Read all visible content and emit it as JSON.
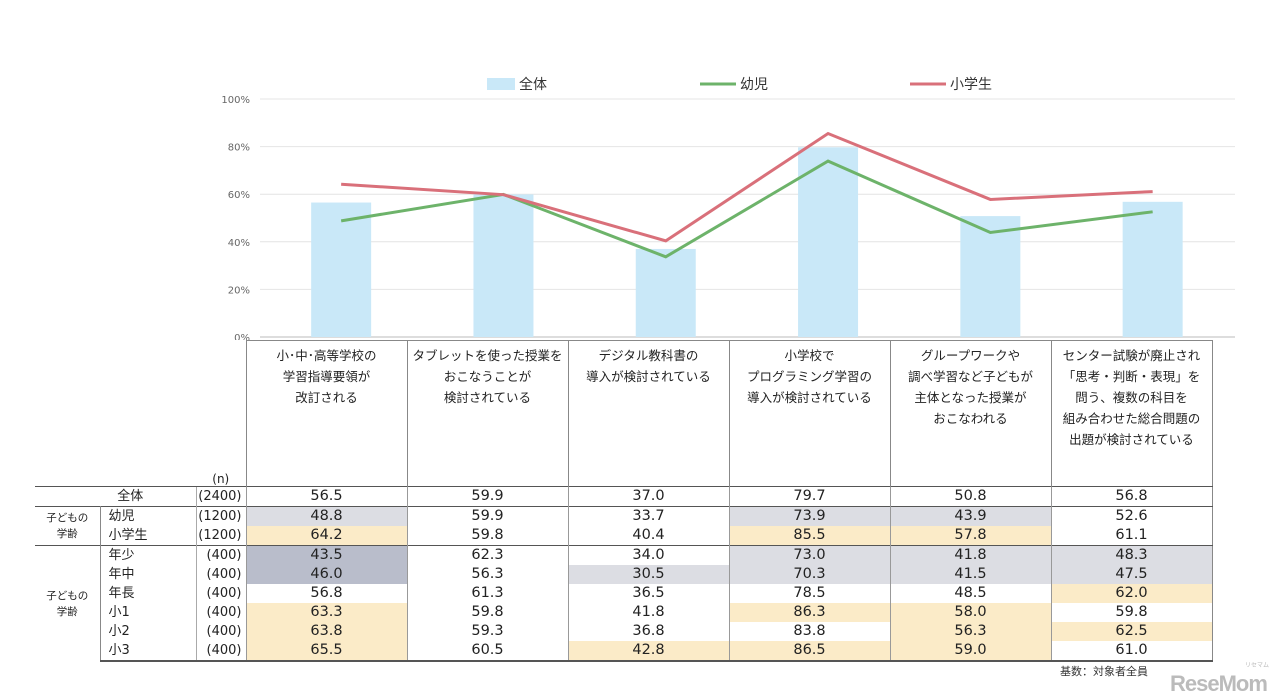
{
  "chart_data": {
    "type": "bar+line",
    "categories": [
      "小･中･高等学校の\n学習指導要領が\n改訂される",
      "タブレットを使った授業を\nおこなうことが\n検討されている",
      "デジタル教科書の\n導入が検討されている",
      "小学校で\nプログラミング学習の\n導入が検討されている",
      "グループワークや\n調べ学習など子どもが\n主体となった授業が\nおこなわれる",
      "センター試験が廃止され\n「思考・判断・表現」を\n問う、複数の科目を\n組み合わせた総合問題の\n出題が検討されている"
    ],
    "series": [
      {
        "name": "全体",
        "kind": "bar",
        "color": "#c9e8f8",
        "values": [
          56.5,
          59.9,
          37.0,
          79.7,
          50.8,
          56.8
        ]
      },
      {
        "name": "幼児",
        "kind": "line",
        "color": "#6db36a",
        "values": [
          48.8,
          59.9,
          33.7,
          73.9,
          43.9,
          52.6
        ]
      },
      {
        "name": "小学生",
        "kind": "line",
        "color": "#d9707a",
        "values": [
          64.2,
          59.8,
          40.4,
          85.5,
          57.8,
          61.1
        ]
      }
    ],
    "yticks": [
      "0%",
      "20%",
      "40%",
      "60%",
      "80%",
      "100%"
    ],
    "ylim": [
      0,
      100
    ],
    "grid": true,
    "legend": "top"
  },
  "table": {
    "n_header": "(n)",
    "shade_colors": {
      "l": "#dcdde3",
      "d": "#b9bdcb",
      "y": "#fbebc8",
      "w": "#ffffff"
    },
    "rows": [
      {
        "group": "",
        "label": "全体",
        "n": "(2400)",
        "values": [
          "56.5",
          "59.9",
          "37.0",
          "79.7",
          "50.8",
          "56.8"
        ],
        "shade": "wwwwww"
      },
      {
        "group": "子どもの\n学齢",
        "label": "幼児",
        "n": "(1200)",
        "values": [
          "48.8",
          "59.9",
          "33.7",
          "73.9",
          "43.9",
          "52.6"
        ],
        "shade": "lwwllw"
      },
      {
        "group": "",
        "label": "小学生",
        "n": "(1200)",
        "values": [
          "64.2",
          "59.8",
          "40.4",
          "85.5",
          "57.8",
          "61.1"
        ],
        "shade": "ywwyyw"
      },
      {
        "group": "子どもの\n学齢",
        "label": "年少",
        "n": "(400)",
        "values": [
          "43.5",
          "62.3",
          "34.0",
          "73.0",
          "41.8",
          "48.3"
        ],
        "shade": "dwwlll"
      },
      {
        "group": "",
        "label": "年中",
        "n": "(400)",
        "values": [
          "46.0",
          "56.3",
          "30.5",
          "70.3",
          "41.5",
          "47.5"
        ],
        "shade": "dwllll"
      },
      {
        "group": "",
        "label": "年長",
        "n": "(400)",
        "values": [
          "56.8",
          "61.3",
          "36.5",
          "78.5",
          "48.5",
          "62.0"
        ],
        "shade": "wwwwwy"
      },
      {
        "group": "",
        "label": "小1",
        "n": "(400)",
        "values": [
          "63.3",
          "59.8",
          "41.8",
          "86.3",
          "58.0",
          "59.8"
        ],
        "shade": "ywwyyw"
      },
      {
        "group": "",
        "label": "小2",
        "n": "(400)",
        "values": [
          "63.8",
          "59.3",
          "36.8",
          "83.8",
          "56.3",
          "62.5"
        ],
        "shade": "ywwwyy"
      },
      {
        "group": "",
        "label": "小3",
        "n": "(400)",
        "values": [
          "65.5",
          "60.5",
          "42.8",
          "86.5",
          "59.0",
          "61.0"
        ],
        "shade": "ywyyyw"
      }
    ]
  },
  "footnote": "基数：対象者全員",
  "logo": {
    "text": "ReseMom",
    "kana": "リセマム"
  }
}
